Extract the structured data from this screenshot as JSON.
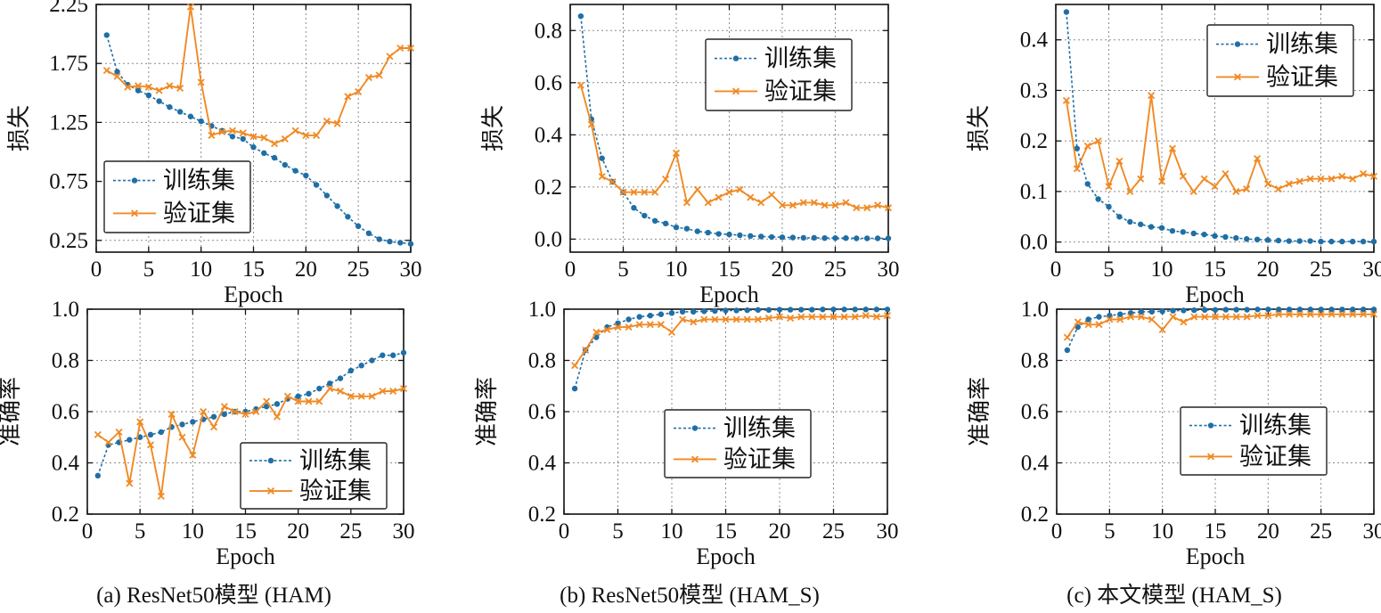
{
  "colors": {
    "train": "#1f6fa6",
    "val": "#f08a24"
  },
  "chart_data": [
    {
      "id": "a-loss",
      "type": "line",
      "xlabel": "Epoch",
      "ylabel": "损失",
      "xlim": [
        0,
        30
      ],
      "ylim": [
        0.15,
        2.25
      ],
      "xticks": [
        0,
        5,
        10,
        15,
        20,
        25,
        30
      ],
      "yticks": [
        0.25,
        0.75,
        1.25,
        1.75,
        2.25
      ],
      "ytick_labels": [
        "0.25",
        "0.75",
        "1.25",
        "1.75",
        "2.25"
      ],
      "legend": "lower-left",
      "series": [
        {
          "name": "训练集",
          "style": "train",
          "x": [
            1,
            2,
            3,
            4,
            5,
            6,
            7,
            8,
            9,
            10,
            11,
            12,
            13,
            14,
            15,
            16,
            17,
            18,
            19,
            20,
            21,
            22,
            23,
            24,
            25,
            26,
            27,
            28,
            29,
            30
          ],
          "values": [
            1.99,
            1.68,
            1.57,
            1.52,
            1.48,
            1.43,
            1.38,
            1.34,
            1.3,
            1.26,
            1.22,
            1.18,
            1.13,
            1.11,
            1.04,
            0.99,
            0.95,
            0.89,
            0.84,
            0.8,
            0.72,
            0.63,
            0.54,
            0.45,
            0.37,
            0.31,
            0.26,
            0.24,
            0.23,
            0.22
          ]
        },
        {
          "name": "验证集",
          "style": "val",
          "x": [
            1,
            2,
            3,
            4,
            5,
            6,
            7,
            8,
            9,
            10,
            11,
            12,
            13,
            14,
            15,
            16,
            17,
            18,
            19,
            20,
            21,
            22,
            23,
            24,
            25,
            26,
            27,
            28,
            29,
            30
          ],
          "values": [
            1.69,
            1.64,
            1.55,
            1.56,
            1.55,
            1.52,
            1.56,
            1.54,
            2.23,
            1.59,
            1.14,
            1.17,
            1.18,
            1.16,
            1.13,
            1.12,
            1.07,
            1.11,
            1.18,
            1.14,
            1.14,
            1.26,
            1.24,
            1.47,
            1.51,
            1.63,
            1.65,
            1.81,
            1.88,
            1.88
          ]
        }
      ]
    },
    {
      "id": "b-loss",
      "type": "line",
      "xlabel": "Epoch",
      "ylabel": "损失",
      "xlim": [
        0,
        30
      ],
      "ylim": [
        -0.05,
        0.9
      ],
      "xticks": [
        0,
        5,
        10,
        15,
        20,
        25,
        30
      ],
      "yticks": [
        0.0,
        0.2,
        0.4,
        0.6,
        0.8
      ],
      "ytick_labels": [
        "0.0",
        "0.2",
        "0.4",
        "0.6",
        "0.8"
      ],
      "legend": "top-right",
      "series": [
        {
          "name": "训练集",
          "style": "train",
          "x": [
            1,
            2,
            3,
            4,
            5,
            6,
            7,
            8,
            9,
            10,
            11,
            12,
            13,
            14,
            15,
            16,
            17,
            18,
            19,
            20,
            21,
            22,
            23,
            24,
            25,
            26,
            27,
            28,
            29,
            30
          ],
          "values": [
            0.855,
            0.46,
            0.31,
            0.22,
            0.18,
            0.12,
            0.09,
            0.07,
            0.06,
            0.045,
            0.04,
            0.03,
            0.025,
            0.02,
            0.018,
            0.015,
            0.012,
            0.01,
            0.008,
            0.007,
            0.006,
            0.005,
            0.005,
            0.004,
            0.004,
            0.004,
            0.003,
            0.003,
            0.003,
            0.003
          ]
        },
        {
          "name": "验证集",
          "style": "val",
          "x": [
            1,
            2,
            3,
            4,
            5,
            6,
            7,
            8,
            9,
            10,
            11,
            12,
            13,
            14,
            15,
            16,
            17,
            18,
            19,
            20,
            21,
            22,
            23,
            24,
            25,
            26,
            27,
            28,
            29,
            30
          ],
          "values": [
            0.59,
            0.44,
            0.24,
            0.22,
            0.18,
            0.18,
            0.18,
            0.18,
            0.23,
            0.33,
            0.14,
            0.19,
            0.14,
            0.16,
            0.18,
            0.19,
            0.16,
            0.14,
            0.17,
            0.13,
            0.13,
            0.14,
            0.14,
            0.13,
            0.13,
            0.14,
            0.12,
            0.12,
            0.13,
            0.12
          ]
        }
      ]
    },
    {
      "id": "c-loss",
      "type": "line",
      "xlabel": "Epoch",
      "ylabel": "损失",
      "xlim": [
        0,
        30
      ],
      "ylim": [
        -0.02,
        0.47
      ],
      "xticks": [
        0,
        5,
        10,
        15,
        20,
        25,
        30
      ],
      "yticks": [
        0.0,
        0.1,
        0.2,
        0.3,
        0.4
      ],
      "ytick_labels": [
        "0.0",
        "0.1",
        "0.2",
        "0.3",
        "0.4"
      ],
      "legend": "top-right",
      "series": [
        {
          "name": "训练集",
          "style": "train",
          "x": [
            1,
            2,
            3,
            4,
            5,
            6,
            7,
            8,
            9,
            10,
            11,
            12,
            13,
            14,
            15,
            16,
            17,
            18,
            19,
            20,
            21,
            22,
            23,
            24,
            25,
            26,
            27,
            28,
            29,
            30
          ],
          "values": [
            0.455,
            0.185,
            0.115,
            0.085,
            0.07,
            0.05,
            0.04,
            0.035,
            0.03,
            0.028,
            0.022,
            0.02,
            0.017,
            0.015,
            0.012,
            0.01,
            0.008,
            0.006,
            0.005,
            0.004,
            0.003,
            0.002,
            0.002,
            0.002,
            0.001,
            0.001,
            0.001,
            0.001,
            0.001,
            0.001
          ]
        },
        {
          "name": "验证集",
          "style": "val",
          "x": [
            1,
            2,
            3,
            4,
            5,
            6,
            7,
            8,
            9,
            10,
            11,
            12,
            13,
            14,
            15,
            16,
            17,
            18,
            19,
            20,
            21,
            22,
            23,
            24,
            25,
            26,
            27,
            28,
            29,
            30
          ],
          "values": [
            0.28,
            0.145,
            0.19,
            0.2,
            0.11,
            0.16,
            0.1,
            0.125,
            0.29,
            0.12,
            0.185,
            0.13,
            0.1,
            0.125,
            0.11,
            0.135,
            0.1,
            0.105,
            0.165,
            0.115,
            0.105,
            0.115,
            0.12,
            0.125,
            0.125,
            0.125,
            0.13,
            0.125,
            0.135,
            0.13
          ]
        }
      ]
    },
    {
      "id": "a-acc",
      "type": "line",
      "xlabel": "Epoch",
      "ylabel": "准确率",
      "xlim": [
        0,
        30
      ],
      "ylim": [
        0.2,
        1.0
      ],
      "xticks": [
        0,
        5,
        10,
        15,
        20,
        25,
        30
      ],
      "yticks": [
        0.2,
        0.4,
        0.6,
        0.8,
        1.0
      ],
      "ytick_labels": [
        "0.2",
        "0.4",
        "0.6",
        "0.8",
        "1.0"
      ],
      "legend": "lower-right",
      "series": [
        {
          "name": "训练集",
          "style": "train",
          "x": [
            1,
            2,
            3,
            4,
            5,
            6,
            7,
            8,
            9,
            10,
            11,
            12,
            13,
            14,
            15,
            16,
            17,
            18,
            19,
            20,
            21,
            22,
            23,
            24,
            25,
            26,
            27,
            28,
            29,
            30
          ],
          "values": [
            0.35,
            0.47,
            0.48,
            0.49,
            0.5,
            0.51,
            0.52,
            0.54,
            0.55,
            0.56,
            0.57,
            0.58,
            0.59,
            0.6,
            0.6,
            0.61,
            0.62,
            0.63,
            0.65,
            0.66,
            0.67,
            0.69,
            0.71,
            0.73,
            0.76,
            0.78,
            0.8,
            0.82,
            0.82,
            0.83
          ]
        },
        {
          "name": "验证集",
          "style": "val",
          "x": [
            1,
            2,
            3,
            4,
            5,
            6,
            7,
            8,
            9,
            10,
            11,
            12,
            13,
            14,
            15,
            16,
            17,
            18,
            19,
            20,
            21,
            22,
            23,
            24,
            25,
            26,
            27,
            28,
            29,
            30
          ],
          "values": [
            0.51,
            0.48,
            0.52,
            0.32,
            0.56,
            0.47,
            0.27,
            0.59,
            0.5,
            0.43,
            0.6,
            0.54,
            0.62,
            0.6,
            0.59,
            0.6,
            0.64,
            0.58,
            0.66,
            0.64,
            0.64,
            0.64,
            0.69,
            0.68,
            0.66,
            0.66,
            0.66,
            0.68,
            0.68,
            0.69
          ]
        }
      ]
    },
    {
      "id": "b-acc",
      "type": "line",
      "xlabel": "Epoch",
      "ylabel": "准确率",
      "xlim": [
        0,
        30
      ],
      "ylim": [
        0.2,
        1.0
      ],
      "xticks": [
        0,
        5,
        10,
        15,
        20,
        25,
        30
      ],
      "yticks": [
        0.2,
        0.4,
        0.6,
        0.8,
        1.0
      ],
      "ytick_labels": [
        "0.2",
        "0.4",
        "0.6",
        "0.8",
        "1.0"
      ],
      "legend": "middle-right",
      "series": [
        {
          "name": "训练集",
          "style": "train",
          "x": [
            1,
            2,
            3,
            4,
            5,
            6,
            7,
            8,
            9,
            10,
            11,
            12,
            13,
            14,
            15,
            16,
            17,
            18,
            19,
            20,
            21,
            22,
            23,
            24,
            25,
            26,
            27,
            28,
            29,
            30
          ],
          "values": [
            0.69,
            0.84,
            0.89,
            0.93,
            0.945,
            0.96,
            0.97,
            0.975,
            0.98,
            0.985,
            0.99,
            0.99,
            0.992,
            0.993,
            0.995,
            0.995,
            0.996,
            0.997,
            0.997,
            0.998,
            0.998,
            0.998,
            0.998,
            0.999,
            0.999,
            0.999,
            0.999,
            0.999,
            0.999,
            0.999
          ]
        },
        {
          "name": "验证集",
          "style": "val",
          "x": [
            1,
            2,
            3,
            4,
            5,
            6,
            7,
            8,
            9,
            10,
            11,
            12,
            13,
            14,
            15,
            16,
            17,
            18,
            19,
            20,
            21,
            22,
            23,
            24,
            25,
            26,
            27,
            28,
            29,
            30
          ],
          "values": [
            0.78,
            0.84,
            0.91,
            0.92,
            0.93,
            0.93,
            0.94,
            0.94,
            0.94,
            0.91,
            0.96,
            0.95,
            0.96,
            0.96,
            0.96,
            0.96,
            0.96,
            0.96,
            0.965,
            0.97,
            0.965,
            0.97,
            0.97,
            0.97,
            0.97,
            0.97,
            0.97,
            0.975,
            0.97,
            0.975
          ]
        }
      ]
    },
    {
      "id": "c-acc",
      "type": "line",
      "xlabel": "Epoch",
      "ylabel": "准确率",
      "xlim": [
        0,
        30
      ],
      "ylim": [
        0.2,
        1.0
      ],
      "xticks": [
        0,
        5,
        10,
        15,
        20,
        25,
        30
      ],
      "yticks": [
        0.2,
        0.4,
        0.6,
        0.8,
        1.0
      ],
      "ytick_labels": [
        "0.2",
        "0.4",
        "0.6",
        "0.8",
        "1.0"
      ],
      "legend": "middle-right",
      "series": [
        {
          "name": "训练集",
          "style": "train",
          "x": [
            1,
            2,
            3,
            4,
            5,
            6,
            7,
            8,
            9,
            10,
            11,
            12,
            13,
            14,
            15,
            16,
            17,
            18,
            19,
            20,
            21,
            22,
            23,
            24,
            25,
            26,
            27,
            28,
            29,
            30
          ],
          "values": [
            0.84,
            0.93,
            0.96,
            0.97,
            0.975,
            0.98,
            0.985,
            0.99,
            0.99,
            0.992,
            0.994,
            0.995,
            0.996,
            0.997,
            0.997,
            0.998,
            0.998,
            0.998,
            0.999,
            0.999,
            0.999,
            0.999,
            0.999,
            0.999,
            0.999,
            0.999,
            0.999,
            0.999,
            0.999,
            0.999
          ]
        },
        {
          "name": "验证集",
          "style": "val",
          "x": [
            1,
            2,
            3,
            4,
            5,
            6,
            7,
            8,
            9,
            10,
            11,
            12,
            13,
            14,
            15,
            16,
            17,
            18,
            19,
            20,
            21,
            22,
            23,
            24,
            25,
            26,
            27,
            28,
            29,
            30
          ],
          "values": [
            0.89,
            0.95,
            0.94,
            0.94,
            0.96,
            0.96,
            0.97,
            0.97,
            0.96,
            0.92,
            0.97,
            0.95,
            0.97,
            0.97,
            0.97,
            0.97,
            0.97,
            0.97,
            0.975,
            0.975,
            0.98,
            0.98,
            0.98,
            0.98,
            0.98,
            0.98,
            0.98,
            0.98,
            0.98,
            0.98
          ]
        }
      ]
    }
  ],
  "captions": {
    "a": "(a) ResNet50模型 (HAM)",
    "b": "(b) ResNet50模型 (HAM_S)",
    "c": "(c) 本文模型 (HAM_S)"
  }
}
